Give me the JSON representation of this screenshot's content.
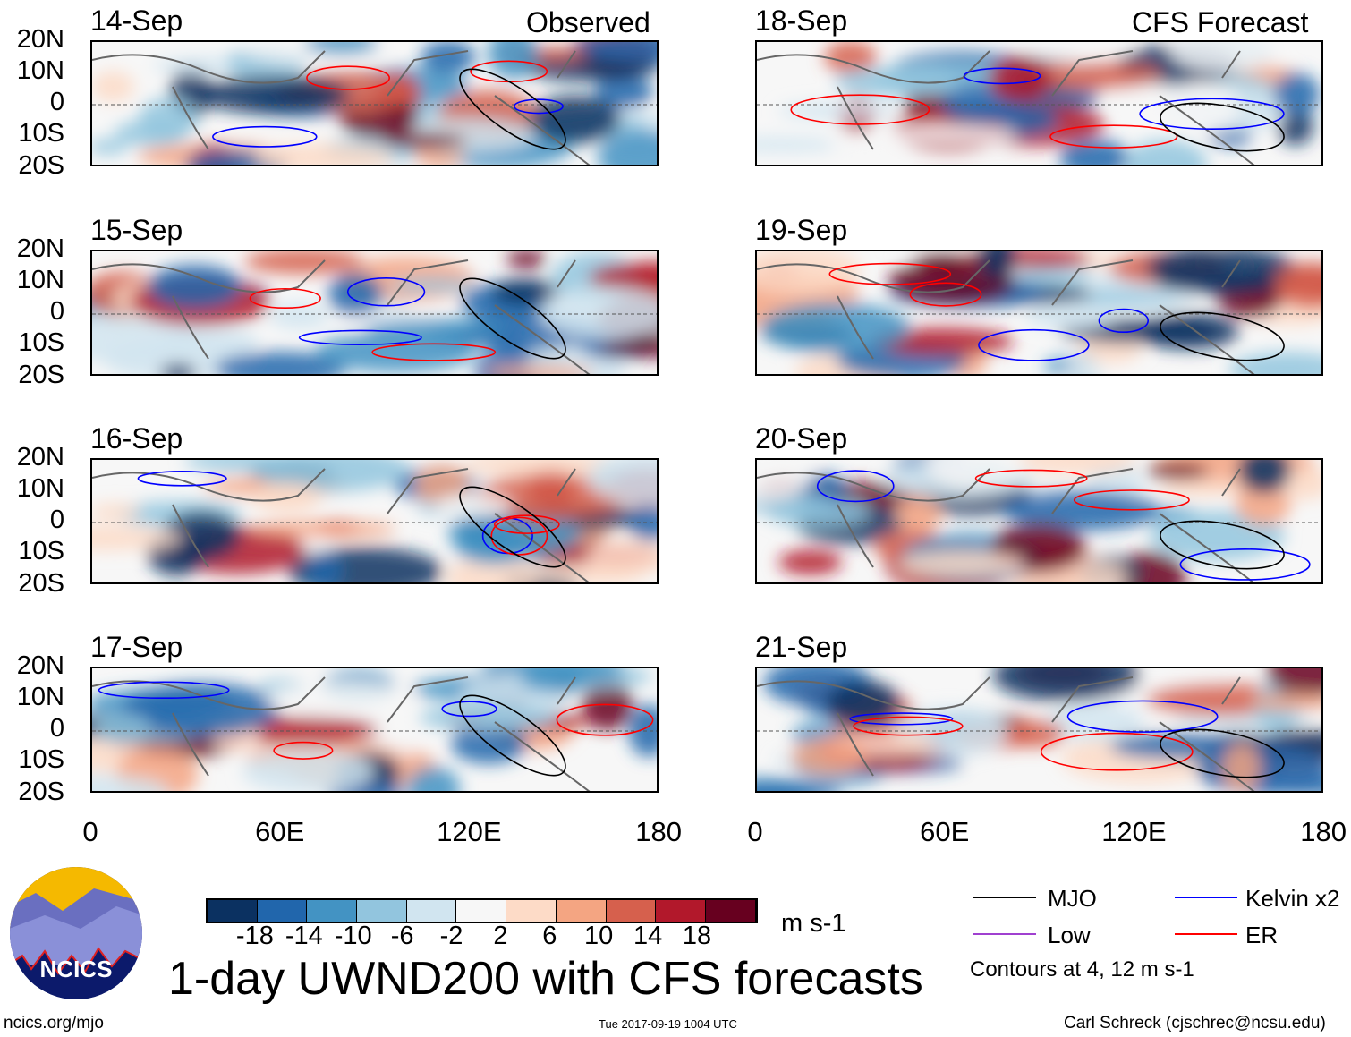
{
  "header": {
    "left_label": "Observed",
    "right_label": "CFS Forecast"
  },
  "panels_left": [
    {
      "date": "14-Sep"
    },
    {
      "date": "15-Sep"
    },
    {
      "date": "16-Sep"
    },
    {
      "date": "17-Sep"
    }
  ],
  "panels_right": [
    {
      "date": "18-Sep"
    },
    {
      "date": "19-Sep"
    },
    {
      "date": "20-Sep"
    },
    {
      "date": "21-Sep"
    }
  ],
  "lat_ticks": [
    "20N",
    "10N",
    "0",
    "10S",
    "20S"
  ],
  "lon_ticks": [
    "0",
    "60E",
    "120E",
    "180"
  ],
  "colorbar": {
    "colors": [
      "#0b3161",
      "#2166ac",
      "#4393c3",
      "#92c5de",
      "#d1e5f0",
      "#f7f7f7",
      "#fddbc7",
      "#f4a582",
      "#d6604d",
      "#b2182b",
      "#67001f"
    ],
    "labels": [
      "-18",
      "-14",
      "-10",
      "-6",
      "-2",
      "2",
      "6",
      "10",
      "14",
      "18"
    ],
    "units": "m s-1"
  },
  "title": "1-day UWND200 with CFS forecasts",
  "legend": {
    "items": [
      {
        "label": "MJO",
        "color": "#000000"
      },
      {
        "label": "Kelvin x2",
        "color": "#0000ff"
      },
      {
        "label": "Low",
        "color": "#a040d0"
      },
      {
        "label": "ER",
        "color": "#ff0000"
      }
    ],
    "note": "Contours at 4, 12 m s-1"
  },
  "logo": {
    "text": "NCICS"
  },
  "footer": {
    "url": "ncics.org/mjo",
    "timestamp": "Tue 2017-09-19 1004 UTC",
    "author": "Carl Schreck (cjschrec@ncsu.edu)"
  }
}
